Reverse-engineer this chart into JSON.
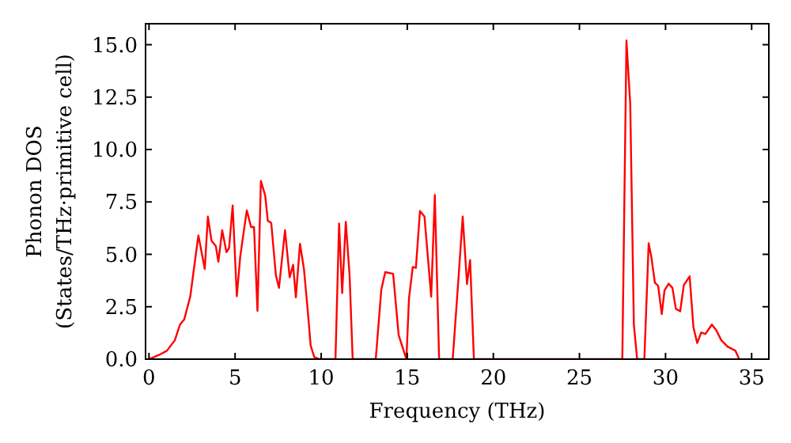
{
  "chart_data": {
    "type": "line",
    "xlabel": "Frequency (THz)",
    "ylabel": "Phonon DOS\n(States/THz·primitive cell)",
    "xlim": [
      -0.2,
      36
    ],
    "ylim": [
      0,
      16
    ],
    "xticks": [
      0,
      5,
      10,
      15,
      20,
      25,
      30,
      35
    ],
    "yticks": [
      {
        "value": 0,
        "label": "0.0"
      },
      {
        "value": 2.5,
        "label": "2.5"
      },
      {
        "value": 5,
        "label": "5.0"
      },
      {
        "value": 7.5,
        "label": "7.5"
      },
      {
        "value": 10,
        "label": "10.0"
      },
      {
        "value": 12.5,
        "label": "12.5"
      },
      {
        "value": 15,
        "label": "15.0"
      }
    ],
    "grid": false,
    "line_style": "solid",
    "marker": "none",
    "series": [
      {
        "color": "#ff0000",
        "x": [
          0,
          0.58,
          1.04,
          1.5,
          1.8,
          2.05,
          2.4,
          2.72,
          2.87,
          3.24,
          3.42,
          3.63,
          3.88,
          4.03,
          4.25,
          4.5,
          4.65,
          4.86,
          5.1,
          5.3,
          5.68,
          5.93,
          6.1,
          6.3,
          6.5,
          6.75,
          6.9,
          7.1,
          7.37,
          7.55,
          7.9,
          8.17,
          8.37,
          8.53,
          8.77,
          9.0,
          9.2,
          9.39,
          9.6,
          9.9,
          10.83,
          11.04,
          11.22,
          11.43,
          11.65,
          11.83,
          13.17,
          13.49,
          13.72,
          14.18,
          14.5,
          14.95,
          15.1,
          15.32,
          15.5,
          15.74,
          16.0,
          16.39,
          16.6,
          16.85,
          17.64,
          18.0,
          18.22,
          18.47,
          18.65,
          18.87,
          27.49,
          27.73,
          27.95,
          28.16,
          28.35,
          28.77,
          29.02,
          29.17,
          29.38,
          29.57,
          29.78,
          29.94,
          30.18,
          30.4,
          30.6,
          30.85,
          31.06,
          31.4,
          31.62,
          31.84,
          32.07,
          32.32,
          32.69,
          32.93,
          33.24,
          33.6,
          34.06,
          34.28
        ],
        "values": [
          0,
          0.2,
          0.4,
          0.9,
          1.65,
          1.9,
          3.0,
          5.0,
          5.9,
          4.3,
          6.8,
          5.65,
          5.4,
          4.65,
          6.15,
          5.1,
          5.3,
          7.33,
          3.0,
          4.9,
          7.1,
          6.3,
          6.3,
          2.3,
          8.5,
          7.8,
          6.6,
          6.5,
          4.0,
          3.4,
          6.15,
          3.9,
          4.5,
          2.95,
          5.5,
          4.3,
          2.5,
          0.65,
          0.1,
          0,
          0,
          6.47,
          3.15,
          6.55,
          4.0,
          0,
          0,
          3.3,
          4.15,
          4.07,
          1.15,
          0,
          2.9,
          4.4,
          4.35,
          7.07,
          6.8,
          2.98,
          7.83,
          0,
          0,
          4.15,
          6.8,
          3.58,
          4.73,
          0,
          0,
          15.2,
          12.15,
          1.65,
          0,
          0,
          5.53,
          4.9,
          3.65,
          3.5,
          2.15,
          3.28,
          3.6,
          3.4,
          2.4,
          2.28,
          3.53,
          3.95,
          1.52,
          0.77,
          1.27,
          1.2,
          1.65,
          1.4,
          0.9,
          0.6,
          0.4,
          0
        ]
      }
    ]
  }
}
